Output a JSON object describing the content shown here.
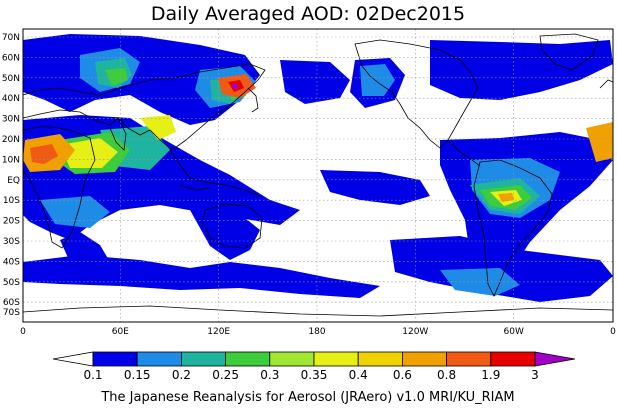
{
  "title": "Daily Averaged AOD: 02Dec2015",
  "lat_labels": [
    "70N",
    "60N",
    "50N",
    "40N",
    "30N",
    "20N",
    "10N",
    "EQ",
    "10S",
    "20S",
    "30S",
    "40S",
    "50S",
    "60S",
    "70S"
  ],
  "lon_labels": [
    "0",
    "60E",
    "120E",
    "180",
    "120W",
    "60W",
    "0"
  ],
  "colorbar": {
    "levels": [
      "0.1",
      "0.15",
      "0.2",
      "0.25",
      "0.3",
      "0.35",
      "0.4",
      "0.6",
      "0.8",
      "1.9",
      "3"
    ],
    "colors": [
      "#ffffff",
      "#0000e6",
      "#1e8ce6",
      "#1eb4a0",
      "#3ccc3c",
      "#a0e632",
      "#e6f014",
      "#f0d200",
      "#f0a000",
      "#f05a14",
      "#e60000",
      "#a000c8"
    ]
  },
  "footer": "The Japanese Reanalysis for Aerosol (JRAero) v1.0 MRI/KU_RIAM"
}
